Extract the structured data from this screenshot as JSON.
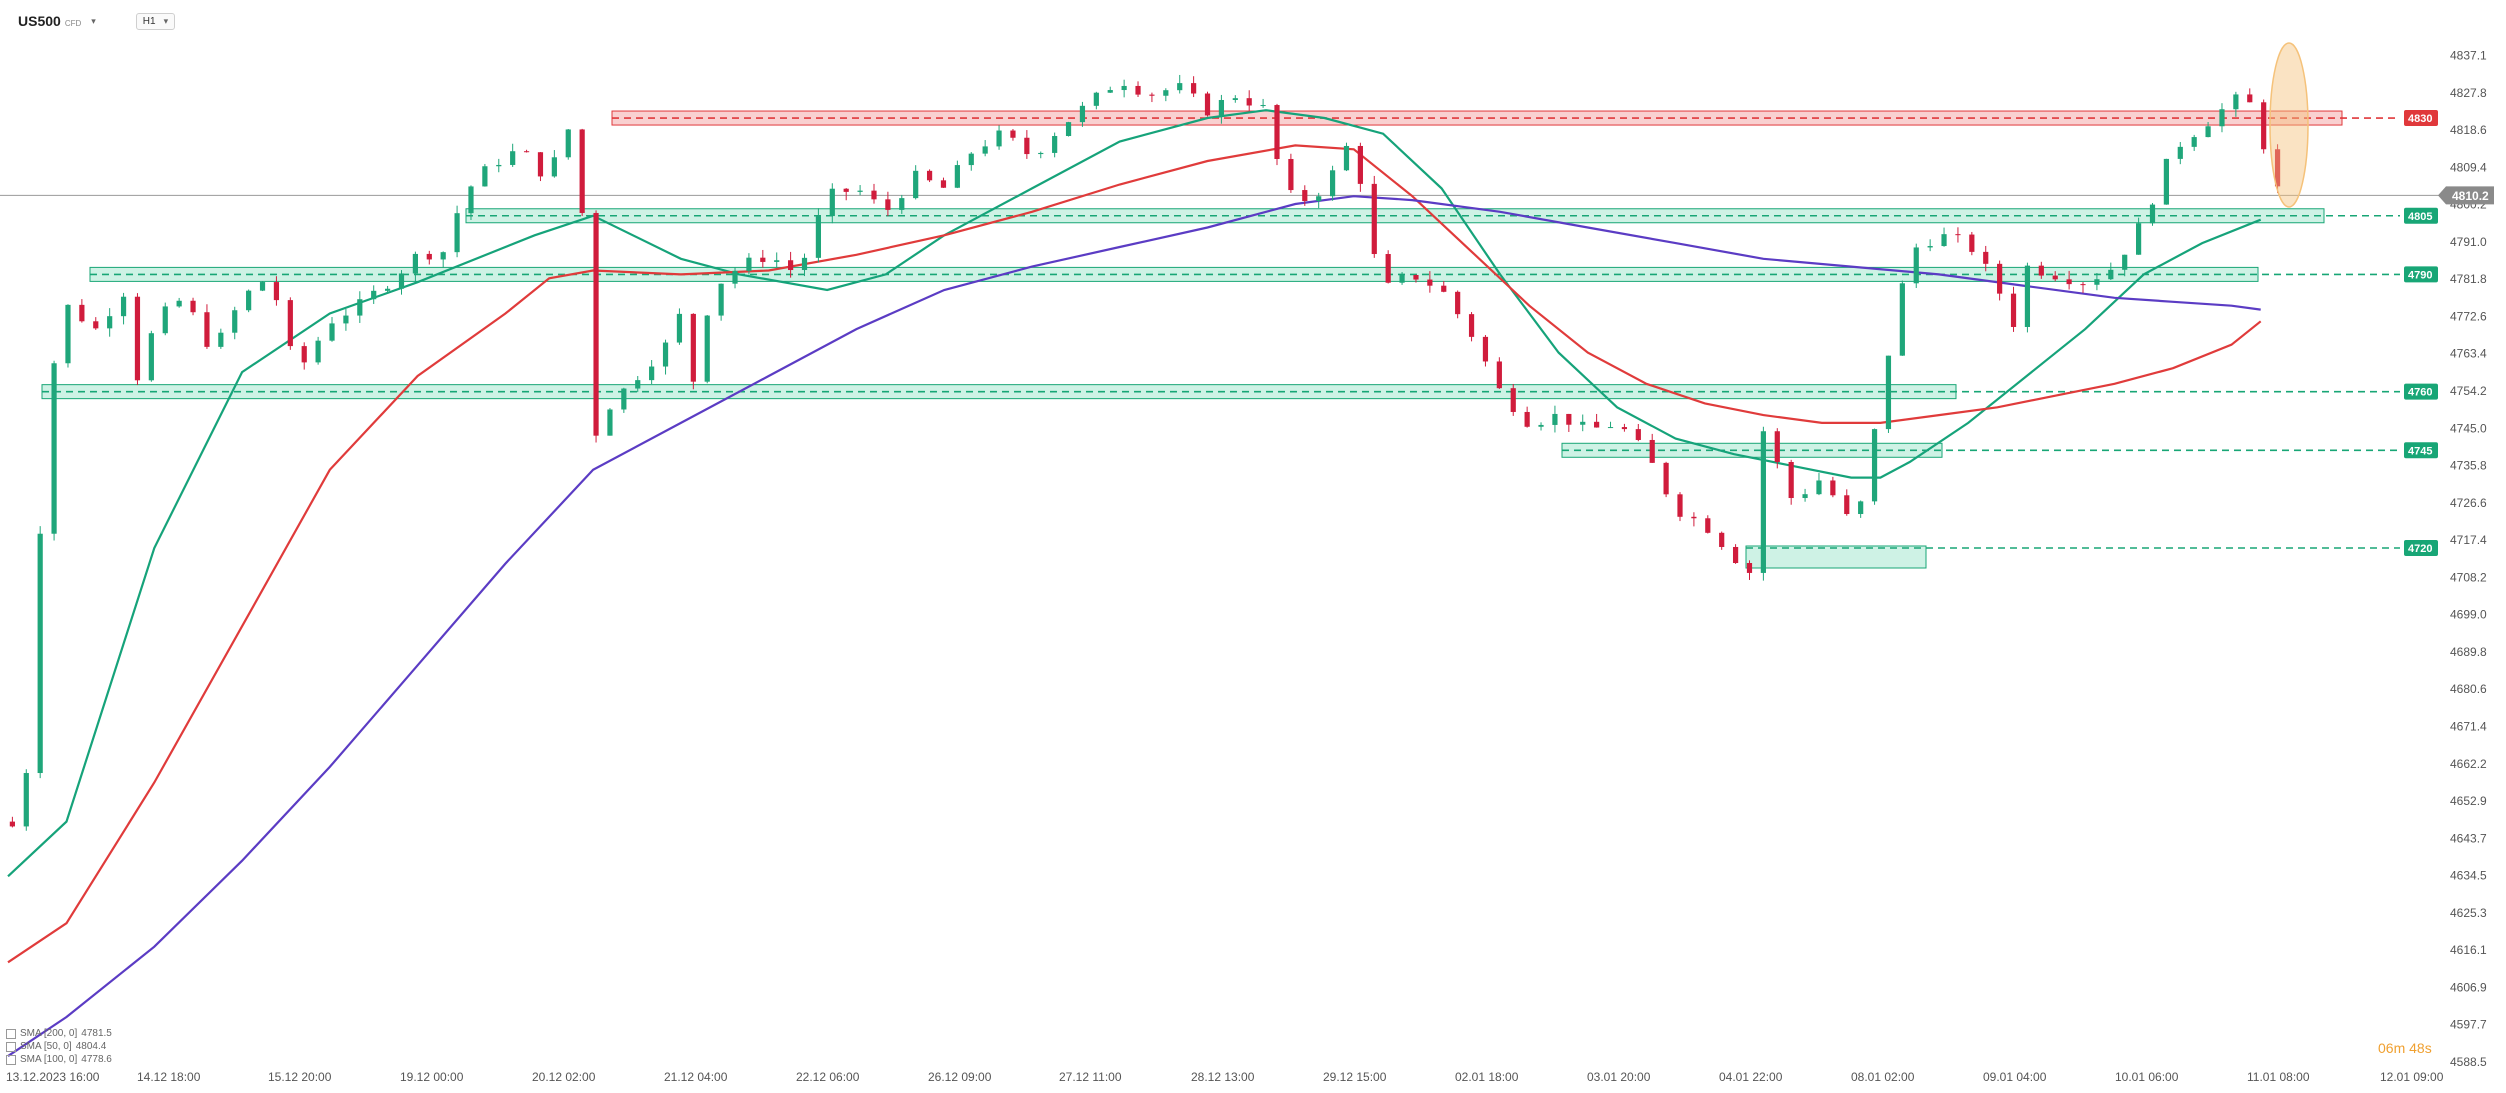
{
  "toolbar": {
    "symbol": "US500",
    "symbol_kind": "CFD",
    "timeframe": "H1",
    "caret": "▾"
  },
  "timer": "06m 48s",
  "legend": [
    {
      "label": "SMA [200, 0]",
      "value": "4781.5",
      "color": "#5b3cc4"
    },
    {
      "label": "SMA [50, 0]",
      "value": "4804.4",
      "color": "#16a37a"
    },
    {
      "label": "SMA [100, 0]",
      "value": "4778.6",
      "color": "#e03b3b"
    }
  ],
  "colors": {
    "up": "#1fa67a",
    "down": "#d01c3c",
    "support": "#18a676",
    "resistance": "#e0383b",
    "sma50": "#16a37a",
    "sma100": "#e03b3b",
    "sma200": "#5b3cc4",
    "highlight": "#f5c27a"
  },
  "chart_data": {
    "type": "line",
    "title": "",
    "ylim": [
      4588.5,
      4846.0
    ],
    "y_ticks": [
      "4837.1",
      "4827.8",
      "4818.6",
      "4809.4",
      "4800.2",
      "4791.0",
      "4781.8",
      "4772.6",
      "4763.4",
      "4754.2",
      "4745.0",
      "4735.8",
      "4726.6",
      "4717.4",
      "4708.2",
      "4699.0",
      "4689.8",
      "4680.6",
      "4671.4",
      "4662.2",
      "4652.9",
      "4643.7",
      "4634.5",
      "4625.3",
      "4616.1",
      "4606.9",
      "4597.7",
      "4588.5"
    ],
    "x_labels": [
      "13.12.2023 16:00",
      "14.12 18:00",
      "15.12 20:00",
      "19.12 00:00",
      "20.12 02:00",
      "21.12 04:00",
      "22.12 06:00",
      "26.12 09:00",
      "27.12 11:00",
      "28.12 13:00",
      "29.12 15:00",
      "02.01 18:00",
      "03.01 20:00",
      "04.01 22:00",
      "08.01 02:00",
      "09.01 04:00",
      "10.01 06:00",
      "11.01 08:00",
      "12.01 09:00"
    ],
    "current_price": "4810.2",
    "levels": [
      {
        "label": "4830",
        "value": 4830,
        "kind": "resistance"
      },
      {
        "label": "4805",
        "value": 4805,
        "kind": "support"
      },
      {
        "label": "4790",
        "value": 4790,
        "kind": "support"
      },
      {
        "label": "4760",
        "value": 4760,
        "kind": "support"
      },
      {
        "label": "4745",
        "value": 4745,
        "kind": "support"
      },
      {
        "label": "4720",
        "value": 4720,
        "kind": "support"
      }
    ],
    "price_path": [
      [
        0,
        4650
      ],
      [
        1,
        4646
      ],
      [
        2,
        4715
      ],
      [
        3,
        4765
      ],
      [
        4,
        4782
      ],
      [
        6,
        4776
      ],
      [
        8,
        4786
      ],
      [
        9,
        4760
      ],
      [
        10,
        4778
      ],
      [
        12,
        4784
      ],
      [
        14,
        4770
      ],
      [
        16,
        4784
      ],
      [
        18,
        4790
      ],
      [
        19,
        4772
      ],
      [
        20,
        4766
      ],
      [
        22,
        4778
      ],
      [
        24,
        4782
      ],
      [
        26,
        4788
      ],
      [
        28,
        4795
      ],
      [
        30,
        4796
      ],
      [
        31,
        4810
      ],
      [
        33,
        4818
      ],
      [
        35,
        4822
      ],
      [
        37,
        4814
      ],
      [
        38,
        4828
      ],
      [
        39,
        4825
      ],
      [
        40,
        4748
      ],
      [
        41,
        4756
      ],
      [
        43,
        4764
      ],
      [
        45,
        4772
      ],
      [
        46,
        4780
      ],
      [
        47,
        4760
      ],
      [
        48,
        4786
      ],
      [
        50,
        4792
      ],
      [
        52,
        4795
      ],
      [
        54,
        4790
      ],
      [
        56,
        4810
      ],
      [
        58,
        4812
      ],
      [
        60,
        4806
      ],
      [
        62,
        4815
      ],
      [
        64,
        4812
      ],
      [
        66,
        4822
      ],
      [
        68,
        4826
      ],
      [
        70,
        4820
      ],
      [
        72,
        4828
      ],
      [
        74,
        4834
      ],
      [
        76,
        4840
      ],
      [
        78,
        4836
      ],
      [
        80,
        4838
      ],
      [
        82,
        4832
      ],
      [
        84,
        4836
      ],
      [
        86,
        4832
      ],
      [
        87,
        4815
      ],
      [
        88,
        4808
      ],
      [
        90,
        4812
      ],
      [
        92,
        4826
      ],
      [
        93,
        4800
      ],
      [
        94,
        4786
      ],
      [
        96,
        4790
      ],
      [
        98,
        4786
      ],
      [
        100,
        4775
      ],
      [
        102,
        4760
      ],
      [
        104,
        4752
      ],
      [
        106,
        4754
      ],
      [
        108,
        4750
      ],
      [
        110,
        4752
      ],
      [
        112,
        4744
      ],
      [
        114,
        4730
      ],
      [
        116,
        4726
      ],
      [
        118,
        4718
      ],
      [
        119,
        4712
      ],
      [
        120,
        4750
      ],
      [
        122,
        4732
      ],
      [
        124,
        4738
      ],
      [
        126,
        4726
      ],
      [
        127,
        4734
      ],
      [
        128,
        4760
      ],
      [
        130,
        4796
      ],
      [
        132,
        4800
      ],
      [
        134,
        4798
      ],
      [
        136,
        4787
      ],
      [
        137,
        4776
      ],
      [
        138,
        4792
      ],
      [
        140,
        4790
      ],
      [
        142,
        4788
      ],
      [
        144,
        4792
      ],
      [
        146,
        4804
      ],
      [
        148,
        4822
      ],
      [
        150,
        4828
      ],
      [
        152,
        4834
      ],
      [
        153,
        4836
      ],
      [
        154,
        4826
      ],
      [
        155,
        4812
      ],
      [
        156,
        4810
      ]
    ],
    "series": [
      {
        "name": "SMA [50, 0]",
        "points": [
          [
            0,
            4636
          ],
          [
            4,
            4650
          ],
          [
            10,
            4720
          ],
          [
            16,
            4765
          ],
          [
            22,
            4780
          ],
          [
            28,
            4788
          ],
          [
            36,
            4800
          ],
          [
            40,
            4805
          ],
          [
            46,
            4794
          ],
          [
            50,
            4790
          ],
          [
            56,
            4786
          ],
          [
            60,
            4790
          ],
          [
            64,
            4800
          ],
          [
            70,
            4812
          ],
          [
            76,
            4824
          ],
          [
            82,
            4830
          ],
          [
            86,
            4832
          ],
          [
            90,
            4830
          ],
          [
            94,
            4826
          ],
          [
            98,
            4812
          ],
          [
            102,
            4790
          ],
          [
            106,
            4770
          ],
          [
            110,
            4756
          ],
          [
            114,
            4748
          ],
          [
            118,
            4744
          ],
          [
            122,
            4741
          ],
          [
            126,
            4738
          ],
          [
            128,
            4738
          ],
          [
            130,
            4742
          ],
          [
            134,
            4752
          ],
          [
            138,
            4764
          ],
          [
            142,
            4776
          ],
          [
            146,
            4790
          ],
          [
            150,
            4798
          ],
          [
            154,
            4804
          ]
        ]
      },
      {
        "name": "SMA [100, 0]",
        "points": [
          [
            0,
            4614
          ],
          [
            4,
            4624
          ],
          [
            10,
            4660
          ],
          [
            16,
            4700
          ],
          [
            22,
            4740
          ],
          [
            28,
            4764
          ],
          [
            34,
            4780
          ],
          [
            37,
            4789
          ],
          [
            40,
            4791
          ],
          [
            46,
            4790
          ],
          [
            52,
            4791
          ],
          [
            58,
            4795
          ],
          [
            64,
            4800
          ],
          [
            70,
            4806
          ],
          [
            76,
            4813
          ],
          [
            82,
            4819
          ],
          [
            88,
            4823
          ],
          [
            92,
            4822
          ],
          [
            96,
            4810
          ],
          [
            100,
            4796
          ],
          [
            104,
            4782
          ],
          [
            108,
            4770
          ],
          [
            112,
            4762
          ],
          [
            116,
            4757
          ],
          [
            120,
            4754
          ],
          [
            124,
            4752
          ],
          [
            128,
            4752
          ],
          [
            132,
            4754
          ],
          [
            136,
            4756
          ],
          [
            140,
            4759
          ],
          [
            144,
            4762
          ],
          [
            148,
            4766
          ],
          [
            152,
            4772
          ],
          [
            154,
            4778
          ]
        ]
      },
      {
        "name": "SMA [200, 0]",
        "points": [
          [
            0,
            4590
          ],
          [
            4,
            4600
          ],
          [
            10,
            4618
          ],
          [
            16,
            4640
          ],
          [
            22,
            4664
          ],
          [
            28,
            4690
          ],
          [
            34,
            4716
          ],
          [
            40,
            4740
          ],
          [
            46,
            4752
          ],
          [
            52,
            4764
          ],
          [
            58,
            4776
          ],
          [
            64,
            4786
          ],
          [
            70,
            4792
          ],
          [
            76,
            4797
          ],
          [
            82,
            4802
          ],
          [
            88,
            4808
          ],
          [
            92,
            4810
          ],
          [
            96,
            4809
          ],
          [
            102,
            4806
          ],
          [
            108,
            4802
          ],
          [
            114,
            4798
          ],
          [
            120,
            4794
          ],
          [
            126,
            4792
          ],
          [
            132,
            4790
          ],
          [
            138,
            4787
          ],
          [
            144,
            4784
          ],
          [
            148,
            4783
          ],
          [
            152,
            4782
          ],
          [
            154,
            4781
          ]
        ]
      }
    ]
  }
}
